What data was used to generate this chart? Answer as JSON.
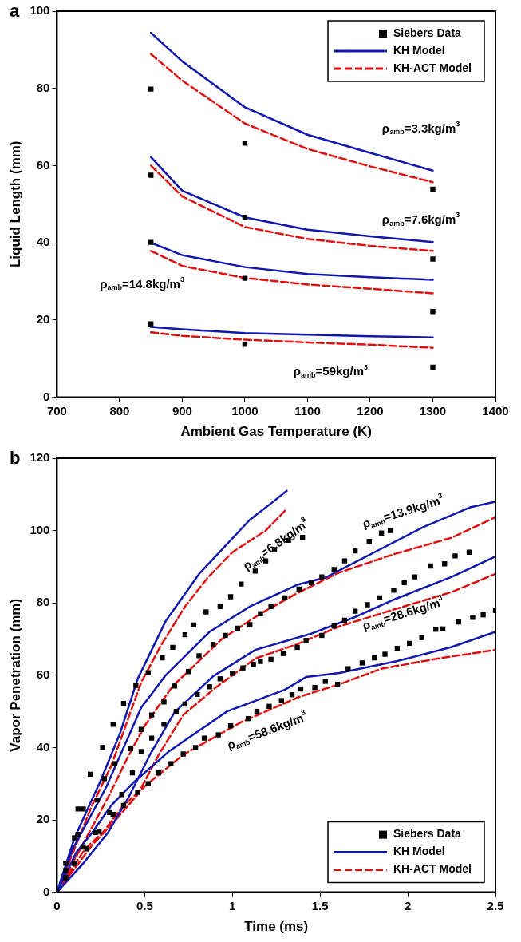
{
  "chart_data": [
    {
      "type": "line",
      "title": "a",
      "xlabel": "Ambient Gas Temperature (K)",
      "ylabel": "Liquid Length (mm)",
      "xlim": [
        700,
        1400
      ],
      "xticks": [
        700,
        800,
        900,
        1000,
        1100,
        1200,
        1300,
        1400
      ],
      "ylim": [
        0,
        100
      ],
      "yticks": [
        0,
        20,
        40,
        60,
        80,
        100
      ],
      "legend": "top right",
      "annotations": [
        "ρ$_{amb}$=3.3kg/m$^{3}$",
        "ρ$_{amb}$=7.6kg/m$^{3}$",
        "ρ$_{amb}$=14.8kg/m$^{3}$",
        "ρ$_{amb}$=59kg/m$^{3}$"
      ],
      "series": [
        {
          "name": "Siebers Data",
          "type": "scatter",
          "marker": "square",
          "color": "#000000",
          "x": [
            850,
            1000,
            1300,
            850,
            1000,
            1300,
            850,
            1000,
            1300,
            850,
            1000,
            1300
          ],
          "values": [
            79.8,
            65.8,
            53.9,
            57.5,
            46.6,
            35.8,
            40.1,
            30.8,
            22.2,
            19,
            13.7,
            7.8
          ]
        },
        {
          "name": "KH Model",
          "line_style": "solid",
          "color": "#1018b0",
          "x": [
            850,
            900,
            1000,
            1100,
            1200,
            1300,
            null,
            850,
            900,
            1000,
            1100,
            1200,
            1300,
            null,
            850,
            900,
            1000,
            1100,
            1200,
            1300,
            null,
            850,
            900,
            1000,
            1100,
            1200,
            1300
          ],
          "values": [
            94.4,
            87,
            75.1,
            68,
            63.3,
            58.7,
            null,
            62.2,
            53.5,
            46.6,
            43.4,
            41.7,
            40.2,
            null,
            40,
            36.8,
            33.7,
            31.9,
            31.1,
            30.4,
            null,
            18.2,
            17.6,
            16.6,
            16.2,
            15.8,
            15.5
          ]
        },
        {
          "name": "KH-ACT Model",
          "line_style": "dashed",
          "color": "#e01010",
          "x": [
            850,
            900,
            1000,
            1100,
            1200,
            1300,
            null,
            850,
            900,
            1000,
            1100,
            1200,
            1300,
            null,
            850,
            900,
            1000,
            1100,
            1200,
            1300,
            null,
            850,
            900,
            1000,
            1100,
            1200,
            1300
          ],
          "values": [
            88.9,
            82,
            70.9,
            64.3,
            59.8,
            55.7,
            null,
            60,
            52,
            44.1,
            41,
            39.2,
            37.9,
            null,
            37.9,
            34,
            30.9,
            29.2,
            28.1,
            26.9,
            null,
            16.8,
            15.9,
            14.9,
            14.2,
            13.6,
            12.8
          ]
        }
      ]
    },
    {
      "type": "line",
      "title": "b",
      "xlabel": "Time (ms)",
      "ylabel": "Vapor Penetration (mm)",
      "xlim": [
        0,
        2.5
      ],
      "xticks": [
        0,
        0.5,
        1,
        1.5,
        2,
        2.5
      ],
      "ylim": [
        0,
        120
      ],
      "yticks": [
        0,
        20,
        40,
        60,
        80,
        100,
        120
      ],
      "legend": "bottom right",
      "annotations": [
        "ρ$_{amb}$=6.8kg/m$^{3}$",
        "ρ$_{amb}$=13.9kg/m$^{3}$",
        "ρ$_{amb}$=28.6kg/m$^{3}$",
        "ρ$_{amb}$=58.6kg/m$^{3}$"
      ],
      "series": [
        {
          "name": "Siebers Data",
          "type": "scatter",
          "marker": "square",
          "color": "#000000",
          "x": [
            0,
            0.05,
            0.1,
            0.12,
            0.19,
            0.26,
            0.32,
            0.38,
            0.45,
            0.52,
            0.6,
            0.66,
            0.73,
            0.78,
            0.85,
            0.93,
            0.99,
            1.05,
            1.13,
            1.19,
            1.24,
            1.32,
            1.4,
            0.05,
            0.12,
            0.15,
            0.23,
            0.27,
            0.33,
            0.42,
            0.48,
            0.54,
            0.61,
            0.67,
            0.75,
            0.81,
            0.89,
            0.96,
            1.03,
            1.1,
            1.16,
            1.22,
            1.3,
            1.38,
            1.45,
            1.51,
            1.58,
            1.64,
            1.7,
            1.78,
            1.85,
            1.9,
            0.05,
            0.1,
            0.17,
            0.22,
            0.3,
            0.37,
            0.43,
            0.48,
            0.54,
            0.61,
            0.68,
            0.73,
            0.8,
            0.87,
            0.93,
            1.0,
            1.06,
            1.12,
            1.16,
            1.22,
            1.29,
            1.37,
            1.42,
            1.51,
            1.58,
            1.64,
            1.7,
            1.77,
            1.84,
            1.92,
            1.98,
            2.04,
            2.13,
            2.21,
            2.27,
            2.35,
            0.05,
            0.1,
            0.15,
            0.24,
            0.32,
            0.38,
            0.46,
            0.52,
            0.58,
            0.65,
            0.72,
            0.79,
            0.84,
            0.92,
            0.99,
            1.09,
            1.14,
            1.21,
            1.28,
            1.34,
            1.39,
            1.47,
            1.53,
            1.6,
            1.66,
            1.74,
            1.81,
            1.87,
            1.94,
            2.01,
            2.08,
            2.16,
            2.2,
            2.29,
            2.37,
            2.43,
            2.5
          ],
          "values": [
            0,
            8,
            15,
            23,
            32.6,
            40,
            46.4,
            52.2,
            57.2,
            60.7,
            64.8,
            67.7,
            71.2,
            73.9,
            77.5,
            79,
            81.7,
            85.2,
            88.8,
            91.6,
            94.7,
            97.3,
            98.1,
            6,
            16,
            23,
            25.5,
            31.4,
            35.5,
            39.7,
            45,
            49,
            52.6,
            57,
            61,
            65.4,
            68.5,
            71,
            73,
            74,
            77,
            79,
            81.4,
            83.8,
            85.6,
            87.2,
            89.2,
            91.6,
            94.4,
            97,
            99.3,
            100,
            4,
            8,
            12,
            16.5,
            22,
            27,
            33,
            38.9,
            42.6,
            46.4,
            50,
            52,
            54.7,
            56.8,
            59,
            60.5,
            62,
            63,
            63.8,
            64.4,
            66,
            67.7,
            69.6,
            71,
            73.6,
            75.2,
            77.7,
            79.5,
            81.4,
            83.5,
            85.6,
            87.2,
            90.2,
            90.8,
            93,
            94,
            4,
            8,
            12.5,
            16.8,
            21.5,
            24,
            27.6,
            30,
            33,
            35.5,
            38.2,
            40,
            42.6,
            43.5,
            46,
            48,
            50,
            51.4,
            53,
            54.6,
            56.2,
            56.6,
            58.3,
            57.5,
            61.8,
            63.4,
            64.8,
            65.8,
            67.4,
            68.8,
            70.4,
            72.7,
            72.8,
            74.7,
            76,
            76.7,
            77.9
          ]
        },
        {
          "name": "KH Model",
          "line_style": "solid",
          "color": "#1018b0",
          "x": [
            0,
            0.1,
            0.25,
            0.36,
            0.46,
            0.62,
            0.81,
            1.1,
            1.22,
            1.31,
            null,
            0,
            0.09,
            0.18,
            0.28,
            0.38,
            0.48,
            0.62,
            0.87,
            1.1,
            1.37,
            1.53,
            1.69,
            1.85,
            2.09,
            2.36,
            2.5,
            null,
            0,
            0.15,
            0.29,
            0.41,
            0.53,
            0.67,
            0.89,
            1.13,
            1.45,
            1.69,
            1.93,
            2.25,
            2.5,
            null,
            0,
            0.11,
            0.2,
            0.31,
            0.44,
            0.64,
            0.97,
            1.3,
            1.42,
            1.61,
            1.93,
            2.25,
            2.5
          ],
          "values": [
            0,
            15,
            31,
            44,
            59,
            75,
            88,
            103,
            107.5,
            111,
            null,
            0,
            12,
            20,
            29,
            40,
            51,
            60,
            72,
            79,
            85,
            87,
            91,
            95,
            101,
            106.5,
            108,
            null,
            0,
            8,
            16.4,
            26.4,
            38,
            49.7,
            59.7,
            67,
            71.5,
            75.9,
            81.1,
            87.2,
            92.8,
            null,
            0,
            11,
            16.4,
            24,
            30.5,
            39,
            50,
            56,
            59.5,
            60.6,
            63.8,
            67.8,
            72
          ]
        },
        {
          "name": "KH-ACT Model",
          "line_style": "dashed",
          "color": "#e01010",
          "x": [
            0,
            0.1,
            0.2,
            0.31,
            0.48,
            0.59,
            0.73,
            0.86,
            1.0,
            1.19,
            1.3,
            null,
            0,
            0.1,
            0.2,
            0.3,
            0.4,
            0.5,
            0.66,
            0.94,
            1.16,
            1.37,
            1.61,
            1.93,
            2.25,
            2.5,
            null,
            0,
            0.2,
            0.33,
            0.46,
            0.58,
            0.72,
            0.9,
            1.13,
            1.37,
            1.61,
            1.93,
            2.25,
            2.5,
            null,
            0,
            0.16,
            0.26,
            0.38,
            0.53,
            0.72,
            1.05,
            1.38,
            1.61,
            1.85,
            2.17,
            2.5
          ],
          "values": [
            0,
            12,
            24,
            35,
            58,
            68,
            79,
            87,
            94,
            100,
            105.5,
            null,
            0,
            9,
            18,
            27,
            37,
            46,
            57,
            70,
            77,
            82.7,
            88.4,
            93.6,
            98,
            103.7,
            null,
            0,
            13,
            19.7,
            27,
            38,
            49,
            56.4,
            64.6,
            68.6,
            73.5,
            78.3,
            83,
            88,
            null,
            0,
            12,
            16.4,
            24,
            30.5,
            38,
            47,
            54,
            57.5,
            61.8,
            64.6,
            67
          ]
        }
      ]
    }
  ]
}
